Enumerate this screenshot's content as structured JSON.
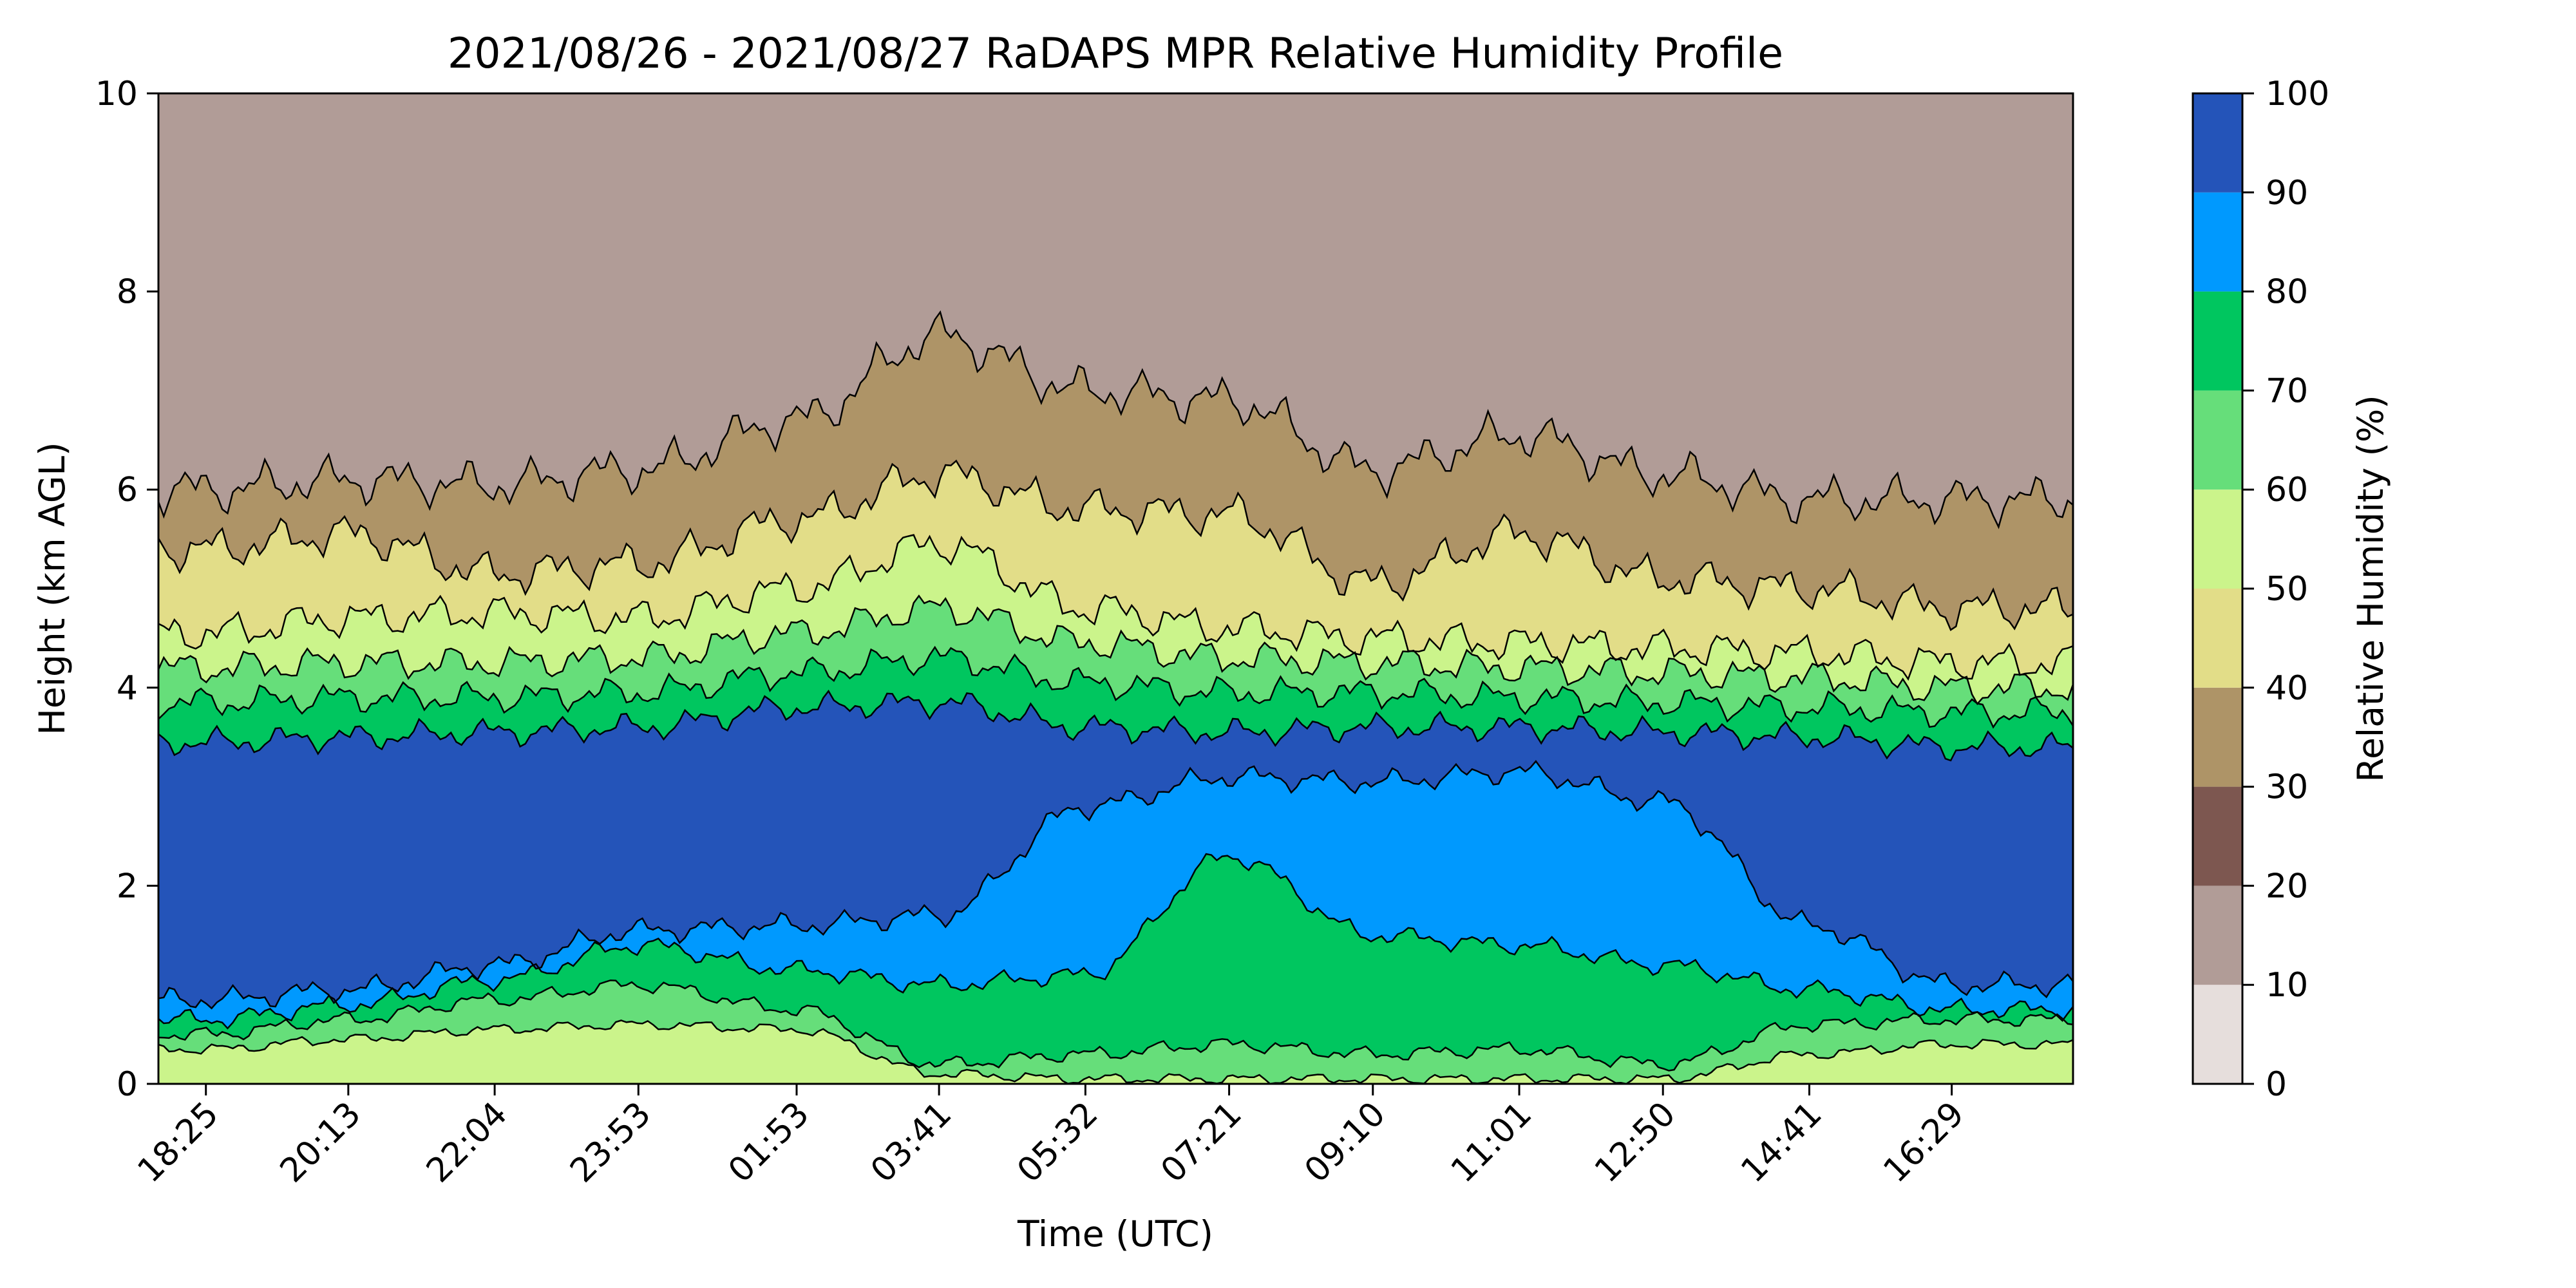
{
  "chart_data": {
    "type": "heatmap",
    "subtype": "filled-contour",
    "title": "2021/08/26 - 2021/08/27 RaDAPS MPR Relative Humidity Profile",
    "xlabel": "Time (UTC)",
    "ylabel": "Height (km AGL)",
    "xticks": [
      "18:25",
      "20:13",
      "22:04",
      "23:53",
      "01:53",
      "03:41",
      "05:32",
      "07:21",
      "09:10",
      "11:01",
      "12:50",
      "14:41",
      "16:29"
    ],
    "x_start_offset_h": 0,
    "ylim": [
      0,
      10
    ],
    "yticks": [
      0,
      2,
      4,
      6,
      8,
      10
    ],
    "colorbar": {
      "label": "Relative Humidity (%)",
      "levels": [
        0,
        10,
        20,
        30,
        40,
        50,
        60,
        70,
        80,
        90,
        100
      ],
      "ticks": [
        0,
        10,
        20,
        30,
        40,
        50,
        60,
        70,
        80,
        90,
        100
      ],
      "colors": [
        "#e6dedc",
        "#b19c97",
        "#7d5750",
        "#ae9467",
        "#e2dd88",
        "#cbf48b",
        "#66de7a",
        "#00c65f",
        "#0099fe",
        "#2454b9"
      ]
    },
    "x": [
      "18:25",
      "20:13",
      "22:04",
      "23:53",
      "01:53",
      "03:41",
      "05:32",
      "07:21",
      "09:10",
      "11:01",
      "12:50",
      "14:41",
      "16:29"
    ],
    "series": [
      {
        "values": [
          0.35,
          0.45,
          0.55,
          0.6,
          0.55,
          0.1,
          0.05,
          0.05,
          0.05,
          0.05,
          0.05,
          0.3,
          0.4
        ]
      },
      {
        "values": [
          0.5,
          0.65,
          0.85,
          1.0,
          0.75,
          0.2,
          0.3,
          0.4,
          0.3,
          0.35,
          0.2,
          0.6,
          0.65
        ]
      },
      {
        "values": [
          0.65,
          0.8,
          1.05,
          1.4,
          1.15,
          1.0,
          1.1,
          2.3,
          1.5,
          1.4,
          1.2,
          0.95,
          0.75
        ]
      },
      {
        "values": [
          0.85,
          0.95,
          1.2,
          1.55,
          1.6,
          1.7,
          2.8,
          3.1,
          3.05,
          3.15,
          2.85,
          1.6,
          1.0
        ]
      },
      {
        "values": [
          3.45,
          3.5,
          3.55,
          3.6,
          3.8,
          3.85,
          3.6,
          3.55,
          3.6,
          3.6,
          3.55,
          3.5,
          3.4
        ]
      },
      {
        "values": [
          3.85,
          3.9,
          3.9,
          3.95,
          4.15,
          4.3,
          4.05,
          3.95,
          3.95,
          3.9,
          3.85,
          3.8,
          3.75
        ]
      },
      {
        "values": [
          4.2,
          4.25,
          4.25,
          4.3,
          4.55,
          4.8,
          4.45,
          4.3,
          4.25,
          4.2,
          4.15,
          4.1,
          4.0
        ]
      },
      {
        "values": [
          4.55,
          4.7,
          4.75,
          4.7,
          5.0,
          5.45,
          4.8,
          4.6,
          4.5,
          4.45,
          4.4,
          4.35,
          4.25
        ]
      },
      {
        "values": [
          5.4,
          5.55,
          5.15,
          5.25,
          5.7,
          6.15,
          5.8,
          5.75,
          5.05,
          5.55,
          5.1,
          5.0,
          4.8
        ]
      },
      {
        "values": [
          6.0,
          6.1,
          6.05,
          6.2,
          6.7,
          7.55,
          7.0,
          6.9,
          6.2,
          6.55,
          6.15,
          5.9,
          5.9
        ]
      }
    ]
  }
}
